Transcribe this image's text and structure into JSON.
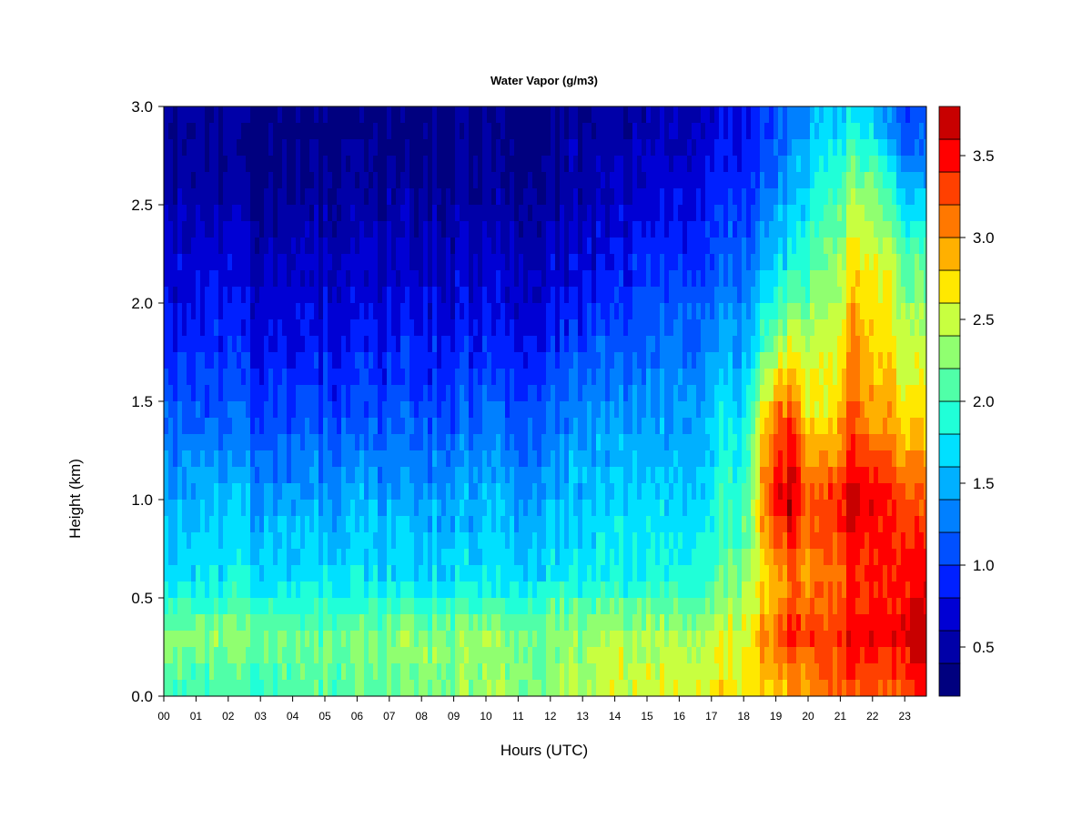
{
  "chart_data": {
    "type": "heatmap",
    "title": "Water Vapor (g/m3)",
    "xlabel": "Hours (UTC)",
    "ylabel": "Height (km)",
    "xlim": [
      0,
      23.8
    ],
    "ylim": [
      0,
      3.0
    ],
    "x_ticks": [
      "00",
      "01",
      "02",
      "03",
      "04",
      "05",
      "06",
      "07",
      "08",
      "09",
      "10",
      "11",
      "12",
      "13",
      "14",
      "15",
      "16",
      "17",
      "18",
      "19",
      "20",
      "21",
      "22",
      "23"
    ],
    "y_ticks": [
      "0.0",
      "0.5",
      "1.0",
      "1.5",
      "2.0",
      "2.5",
      "3.0"
    ],
    "height_levels_km": [
      0.05,
      0.3,
      0.6,
      1.0,
      1.4,
      1.8,
      2.2,
      2.6,
      2.9
    ],
    "hour_columns": [
      0,
      2,
      4,
      6,
      8,
      10,
      12,
      13,
      14,
      15,
      16,
      17,
      18,
      19,
      19.5,
      20,
      20.5,
      21,
      21.5,
      22,
      22.5,
      23,
      23.8
    ],
    "values": [
      [
        2.0,
        2.3,
        1.7,
        1.5,
        1.2,
        0.9,
        0.7,
        0.5,
        0.4
      ],
      [
        2.0,
        2.2,
        1.7,
        1.5,
        1.1,
        0.85,
        0.65,
        0.4,
        0.35
      ],
      [
        2.1,
        2.2,
        1.7,
        1.45,
        1.1,
        0.8,
        0.6,
        0.4,
        0.3
      ],
      [
        2.1,
        2.2,
        1.7,
        1.45,
        1.1,
        0.8,
        0.6,
        0.4,
        0.3
      ],
      [
        2.2,
        2.3,
        1.7,
        1.45,
        1.1,
        0.85,
        0.6,
        0.4,
        0.3
      ],
      [
        2.3,
        2.3,
        1.7,
        1.5,
        1.15,
        0.85,
        0.6,
        0.4,
        0.35
      ],
      [
        2.3,
        2.3,
        1.75,
        1.5,
        1.2,
        0.9,
        0.65,
        0.45,
        0.35
      ],
      [
        2.4,
        2.3,
        1.8,
        1.55,
        1.35,
        1.0,
        0.7,
        0.5,
        0.4
      ],
      [
        2.5,
        2.4,
        1.8,
        1.6,
        1.4,
        1.1,
        0.8,
        0.55,
        0.45
      ],
      [
        2.5,
        2.4,
        1.85,
        1.65,
        1.45,
        1.15,
        0.9,
        0.65,
        0.5
      ],
      [
        2.6,
        2.4,
        1.9,
        1.7,
        1.5,
        1.25,
        1.0,
        0.75,
        0.6
      ],
      [
        2.6,
        2.5,
        2.0,
        1.8,
        1.6,
        1.35,
        1.1,
        0.85,
        0.7
      ],
      [
        2.7,
        2.6,
        2.3,
        2.0,
        1.8,
        1.5,
        1.2,
        0.95,
        0.8
      ],
      [
        2.9,
        3.2,
        2.9,
        3.6,
        3.2,
        2.3,
        1.7,
        1.3,
        1.1
      ],
      [
        2.9,
        3.4,
        3.1,
        3.7,
        3.4,
        2.5,
        1.8,
        1.5,
        1.2
      ],
      [
        3.0,
        3.3,
        3.0,
        3.2,
        2.7,
        2.4,
        2.0,
        1.7,
        1.4
      ],
      [
        3.1,
        3.3,
        3.1,
        3.3,
        2.6,
        2.5,
        2.2,
        1.9,
        1.6
      ],
      [
        3.2,
        3.4,
        3.2,
        3.5,
        2.9,
        2.6,
        2.4,
        2.1,
        1.7
      ],
      [
        3.3,
        3.5,
        3.4,
        3.7,
        3.3,
        3.1,
        2.8,
        2.3,
        1.8
      ],
      [
        3.3,
        3.5,
        3.3,
        3.5,
        2.9,
        2.7,
        2.5,
        2.2,
        1.6
      ],
      [
        3.3,
        3.6,
        3.5,
        3.6,
        3.1,
        2.9,
        2.7,
        2.1,
        1.5
      ],
      [
        3.3,
        3.7,
        3.5,
        3.3,
        2.8,
        2.5,
        2.2,
        1.5,
        1.1
      ],
      [
        3.3,
        3.6,
        3.4,
        3.1,
        2.6,
        2.3,
        2.0,
        1.3,
        1.0
      ]
    ],
    "colorbar": {
      "min": 0.2,
      "max": 3.8,
      "levels": [
        0.2,
        0.4,
        0.6,
        0.8,
        1.0,
        1.2,
        1.4,
        1.6,
        1.8,
        2.0,
        2.2,
        2.4,
        2.6,
        2.8,
        3.0,
        3.2,
        3.4,
        3.6,
        3.8
      ],
      "colors": [
        "#00007F",
        "#0000A8",
        "#0000D4",
        "#0020FF",
        "#0050FF",
        "#0080FF",
        "#00B0FF",
        "#00E0FF",
        "#20FFD8",
        "#50FFA8",
        "#90FF70",
        "#C8FF40",
        "#FFE800",
        "#FFB000",
        "#FF7800",
        "#FF4000",
        "#FF0000",
        "#C80000",
        "#800000"
      ],
      "tick_labels": [
        "0.5",
        "1.0",
        "1.5",
        "2.0",
        "2.5",
        "3.0",
        "3.5"
      ],
      "tick_values": [
        0.5,
        1.0,
        1.5,
        2.0,
        2.5,
        3.0,
        3.5
      ]
    },
    "grid": false,
    "legend": "colorbar-right"
  }
}
